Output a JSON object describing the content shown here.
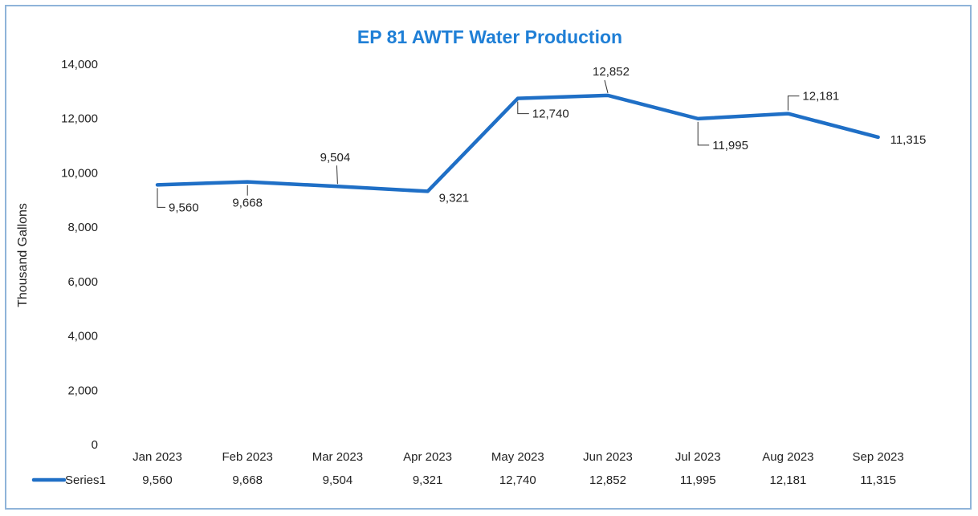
{
  "chart_data": {
    "type": "line",
    "title": "EP 81 AWTF Water Production",
    "ylabel": "Thousand Gallons",
    "xlabel": "",
    "ylim": [
      0,
      14000
    ],
    "yticks": [
      0,
      2000,
      4000,
      6000,
      8000,
      10000,
      12000,
      14000
    ],
    "ytick_labels": [
      "0",
      "2,000",
      "4,000",
      "6,000",
      "8,000",
      "10,000",
      "12,000",
      "14,000"
    ],
    "categories": [
      "Jan 2023",
      "Feb 2023",
      "Mar 2023",
      "Apr 2023",
      "May 2023",
      "Jun 2023",
      "Jul 2023",
      "Aug 2023",
      "Sep 2023"
    ],
    "series": [
      {
        "name": "Series1",
        "values": [
          9560,
          9668,
          9504,
          9321,
          12740,
          12852,
          11995,
          12181,
          11315
        ],
        "labels": [
          "9,560",
          "9,668",
          "9,504",
          "9,321",
          "12,740",
          "12,852",
          "11,995",
          "12,181",
          "11,315"
        ],
        "color": "#1f6fc6"
      }
    ],
    "data_table": true,
    "grid": false,
    "title_color": "#1f7fd6"
  }
}
